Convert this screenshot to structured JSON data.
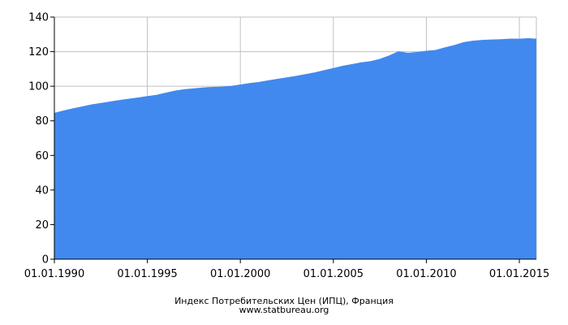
{
  "chart_data": {
    "type": "area",
    "title": "Индекс Потребительских Цен (ИПЦ), Франция",
    "source": "www.statbureau.org",
    "xlabel": "",
    "ylabel": "",
    "x_range": [
      "1990-01-01",
      "2015-12-01"
    ],
    "x_ticks": [
      "01.01.1990",
      "01.01.1995",
      "01.01.2000",
      "01.01.2005",
      "01.01.2010",
      "01.01.2015"
    ],
    "y_ticks": [
      0,
      20,
      40,
      60,
      80,
      100,
      120,
      140
    ],
    "ylim": [
      0,
      140
    ],
    "grid": true,
    "legend": "none",
    "colors": {
      "fill": "#4189ee",
      "grid": "#c0c0c0",
      "axis": "#000000"
    },
    "series": [
      {
        "x": [
          "1990-01-01",
          "1990-07-01",
          "1991-01-01",
          "1991-07-01",
          "1992-01-01",
          "1992-07-01",
          "1993-01-01",
          "1993-07-01",
          "1994-01-01",
          "1994-07-01",
          "1995-01-01",
          "1995-07-01",
          "1996-01-01",
          "1996-07-01",
          "1997-01-01",
          "1997-07-01",
          "1998-01-01",
          "1998-07-01",
          "1999-01-01",
          "1999-07-01",
          "2000-01-01",
          "2000-07-01",
          "2001-01-01",
          "2001-07-01",
          "2002-01-01",
          "2002-07-01",
          "2003-01-01",
          "2003-07-01",
          "2004-01-01",
          "2004-07-01",
          "2005-01-01",
          "2005-07-01",
          "2006-01-01",
          "2006-07-01",
          "2007-01-01",
          "2007-07-01",
          "2008-01-01",
          "2008-07-01",
          "2009-01-01",
          "2009-07-01",
          "2010-01-01",
          "2010-07-01",
          "2011-01-01",
          "2011-07-01",
          "2012-01-01",
          "2012-07-01",
          "2013-01-01",
          "2013-07-01",
          "2014-01-01",
          "2014-07-01",
          "2015-01-01",
          "2015-07-01",
          "2015-12-01"
        ],
        "values": [
          84.6,
          86.0,
          87.2,
          88.3,
          89.5,
          90.3,
          91.2,
          92.0,
          92.8,
          93.5,
          94.3,
          95.0,
          96.3,
          97.5,
          98.3,
          98.8,
          99.3,
          99.6,
          99.8,
          100.2,
          101.0,
          101.8,
          102.5,
          103.4,
          104.3,
          105.1,
          106.0,
          107.0,
          108.0,
          109.3,
          110.5,
          111.8,
          112.8,
          113.8,
          114.5,
          115.8,
          117.8,
          120.2,
          119.3,
          119.8,
          120.5,
          121.0,
          122.5,
          123.8,
          125.5,
          126.3,
          126.8,
          127.0,
          127.2,
          127.5,
          127.5,
          127.8,
          127.5
        ]
      }
    ]
  }
}
